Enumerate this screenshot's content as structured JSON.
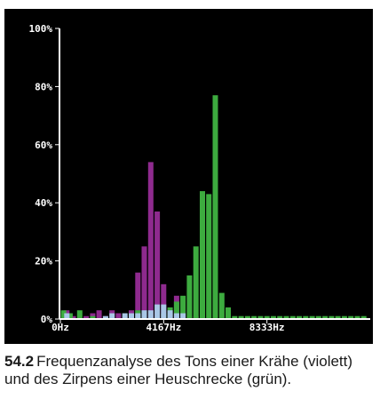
{
  "figure": {
    "number": "54.2",
    "caption": "Frequenzanalyse des Tons einer Krähe (violett) und des Zirpens einer Heuschrecke (grün)."
  },
  "colors": {
    "background": "#000000",
    "axis": "#ffffff",
    "crow": "#8e2a8e",
    "grasshopper": "#3dab3f",
    "overlap": "#a9c7e6"
  },
  "chart_data": {
    "type": "bar",
    "x_ticks": [
      "0Hz",
      "4167Hz",
      "8333Hz"
    ],
    "y_ticks": [
      "0%",
      "20%",
      "40%",
      "60%",
      "80%",
      "100%"
    ],
    "ylim": [
      0,
      100
    ],
    "xlim": [
      0,
      12500
    ],
    "grid": false,
    "legend": "none",
    "series": [
      {
        "color": "violet",
        "x": [
          130,
          260,
          520,
          1042,
          1302,
          1563,
          1823,
          2083,
          2344,
          2604,
          2865,
          3125,
          3385,
          3646,
          3906,
          4167,
          4427,
          4688,
          4948,
          5208,
          5469
        ],
        "values": [
          2,
          3,
          1,
          1,
          2,
          3,
          1,
          3,
          2,
          1,
          3,
          16,
          25,
          54,
          37,
          12,
          2,
          8,
          2,
          1,
          1
        ]
      },
      {
        "color": "green",
        "x": [
          130,
          390,
          781,
          1302,
          3125,
          4167,
          4427,
          4688,
          4948,
          5208,
          5469,
          5729,
          5990,
          6250,
          6510,
          6771,
          7031,
          7292,
          7552,
          7813,
          8073,
          8333,
          8594,
          8854,
          9115,
          9375,
          9635,
          9896,
          10156,
          10417,
          10677,
          10938,
          11198,
          11458,
          11719,
          11979,
          12240
        ],
        "values": [
          3,
          2,
          3,
          1,
          3,
          2,
          4,
          6,
          8,
          15,
          25,
          44,
          43,
          77,
          9,
          4,
          1,
          1,
          1,
          1,
          1,
          1,
          1,
          1,
          1,
          1,
          1,
          1,
          1,
          1,
          1,
          1,
          1,
          1,
          1,
          1,
          1
        ]
      },
      {
        "color": "light blue",
        "x": [
          260,
          1823,
          2083,
          2604,
          2865,
          3125,
          3385,
          3646,
          3906,
          4167,
          4427,
          4688,
          4948
        ],
        "values": [
          2,
          1,
          2,
          2,
          2,
          2,
          3,
          3,
          5,
          5,
          3,
          2,
          2
        ]
      }
    ]
  }
}
